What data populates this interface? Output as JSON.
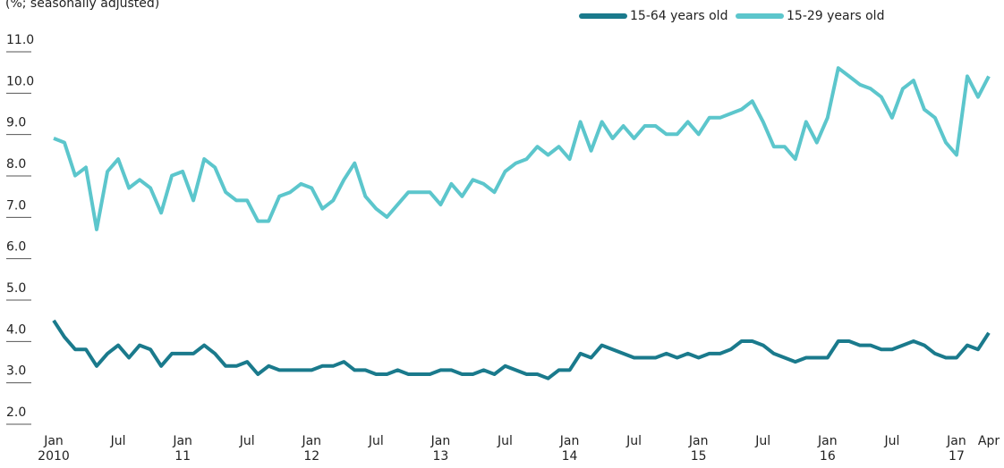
{
  "chart_data": {
    "type": "line",
    "subtitle": "(%; seasonally adjusted)",
    "categories": [
      [
        "Jan",
        "2010"
      ],
      null,
      null,
      null,
      null,
      null,
      [
        "Jul"
      ],
      null,
      null,
      null,
      null,
      null,
      [
        "Jan",
        "11"
      ],
      null,
      null,
      null,
      null,
      null,
      [
        "Jul"
      ],
      null,
      null,
      null,
      null,
      null,
      [
        "Jan",
        "12"
      ],
      null,
      null,
      null,
      null,
      null,
      [
        "Jul"
      ],
      null,
      null,
      null,
      null,
      null,
      [
        "Jan",
        "13"
      ],
      null,
      null,
      null,
      null,
      null,
      [
        "Jul"
      ],
      null,
      null,
      null,
      null,
      null,
      [
        "Jan",
        "14"
      ],
      null,
      null,
      null,
      null,
      null,
      [
        "Jul"
      ],
      null,
      null,
      null,
      null,
      null,
      [
        "Jan",
        "15"
      ],
      null,
      null,
      null,
      null,
      null,
      [
        "Jul"
      ],
      null,
      null,
      null,
      null,
      null,
      [
        "Jan",
        "16"
      ],
      null,
      null,
      null,
      null,
      null,
      [
        "Jul"
      ],
      null,
      null,
      null,
      null,
      null,
      [
        "Jan",
        "17"
      ],
      null,
      null,
      [
        "Apr"
      ]
    ],
    "series": [
      {
        "name": "15-64 years old",
        "color": "#1a7a8c",
        "values": [
          4.4,
          4.0,
          3.7,
          3.7,
          3.3,
          3.6,
          3.8,
          3.5,
          3.8,
          3.7,
          3.3,
          3.6,
          3.6,
          3.6,
          3.8,
          3.6,
          3.3,
          3.3,
          3.4,
          3.1,
          3.3,
          3.2,
          3.2,
          3.2,
          3.2,
          3.3,
          3.3,
          3.4,
          3.2,
          3.2,
          3.1,
          3.1,
          3.2,
          3.1,
          3.1,
          3.1,
          3.2,
          3.2,
          3.1,
          3.1,
          3.2,
          3.1,
          3.3,
          3.2,
          3.1,
          3.1,
          3.0,
          3.2,
          3.2,
          3.6,
          3.5,
          3.8,
          3.7,
          3.6,
          3.5,
          3.5,
          3.5,
          3.6,
          3.5,
          3.6,
          3.5,
          3.6,
          3.6,
          3.7,
          3.9,
          3.9,
          3.8,
          3.6,
          3.5,
          3.4,
          3.5,
          3.5,
          3.5,
          3.9,
          3.9,
          3.8,
          3.8,
          3.7,
          3.7,
          3.8,
          3.9,
          3.8,
          3.6,
          3.5,
          3.5,
          3.8,
          3.7,
          4.1
        ]
      },
      {
        "name": "15-29 years old",
        "color": "#5cc6cc",
        "values": [
          8.8,
          8.7,
          7.9,
          8.1,
          6.6,
          8.0,
          8.3,
          7.6,
          7.8,
          7.6,
          7.0,
          7.9,
          8.0,
          7.3,
          8.3,
          8.1,
          7.5,
          7.3,
          7.3,
          6.8,
          6.8,
          7.4,
          7.5,
          7.7,
          7.6,
          7.1,
          7.3,
          7.8,
          8.2,
          7.4,
          7.1,
          6.9,
          7.2,
          7.5,
          7.5,
          7.5,
          7.2,
          7.7,
          7.4,
          7.8,
          7.7,
          7.5,
          8.0,
          8.2,
          8.3,
          8.6,
          8.4,
          8.6,
          8.3,
          9.2,
          8.5,
          9.2,
          8.8,
          9.1,
          8.8,
          9.1,
          9.1,
          8.9,
          8.9,
          9.2,
          8.9,
          9.3,
          9.3,
          9.4,
          9.5,
          9.7,
          9.2,
          8.6,
          8.6,
          8.3,
          9.2,
          8.7,
          9.3,
          10.5,
          10.3,
          10.1,
          10.0,
          9.8,
          9.3,
          10.0,
          10.2,
          9.5,
          9.3,
          8.7,
          8.4,
          10.3,
          9.8,
          10.3
        ]
      }
    ],
    "ylim": [
      2,
      11
    ],
    "yticks": [
      {
        "value": 2,
        "label": "2.0"
      },
      {
        "value": 3,
        "label": "3.0"
      },
      {
        "value": 4,
        "label": "4.0"
      },
      {
        "value": 5,
        "label": "5.0"
      },
      {
        "value": 6,
        "label": "6.0"
      },
      {
        "value": 7,
        "label": "7.0"
      },
      {
        "value": 8,
        "label": "8.0"
      },
      {
        "value": 9,
        "label": "9.0"
      },
      {
        "value": 10,
        "label": "10.0"
      },
      {
        "value": 11,
        "label": "11.0"
      }
    ],
    "legend": "top-right"
  }
}
